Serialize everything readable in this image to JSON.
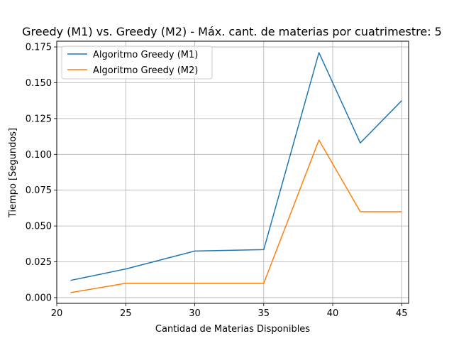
{
  "chart_data": {
    "type": "line",
    "title": "Greedy (M1) vs. Greedy (M2) - Máx. cant. de materias por cuatrimestre: 5",
    "xlabel": "Cantidad de Materias Disponibles",
    "ylabel": "Tiempo [Segundos]",
    "xlim": [
      20,
      45.5
    ],
    "ylim": [
      -0.004,
      0.179
    ],
    "x_ticks": [
      20,
      25,
      30,
      35,
      40,
      45
    ],
    "y_ticks": [
      0.0,
      0.025,
      0.05,
      0.075,
      0.1,
      0.125,
      0.15,
      0.175
    ],
    "x_tick_labels": [
      "20",
      "25",
      "30",
      "35",
      "40",
      "45"
    ],
    "y_tick_labels": [
      "0.000",
      "0.025",
      "0.050",
      "0.075",
      "0.100",
      "0.125",
      "0.150",
      "0.175"
    ],
    "grid": true,
    "legend_position": "top-left",
    "x": [
      21,
      25,
      30,
      35,
      39,
      42,
      45
    ],
    "series": [
      {
        "name": "Algoritmo Greedy (M1)",
        "color": "#1f77b4",
        "values": [
          0.012,
          0.02,
          0.0325,
          0.0335,
          0.171,
          0.108,
          0.1375
        ]
      },
      {
        "name": "Algoritmo Greedy (M2)",
        "color": "#ff7f0e",
        "values": [
          0.0035,
          0.01,
          0.01,
          0.01,
          0.11,
          0.06,
          0.06
        ]
      }
    ]
  }
}
